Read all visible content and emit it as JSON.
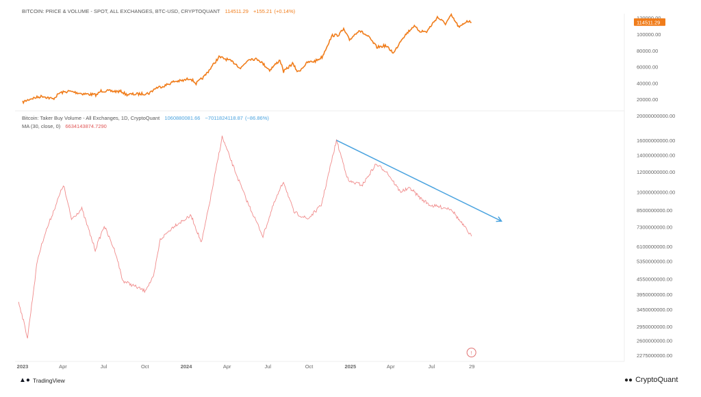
{
  "chart_data": [
    {
      "type": "line",
      "title": "BITCOIN: PRICE & VOLUME - SPOT, ALL EXCHANGES, BTC-USD, CRYPTOQUANT",
      "legend_values": {
        "last": "114511.29",
        "change": "+155.21",
        "change_pct": "(+0.14%)"
      },
      "price_badge": "114511.29",
      "color": "#f07c1a",
      "ylim": [
        0,
        130000
      ],
      "yticks": [
        "120000.00",
        "100000.00",
        "80000.00",
        "60000.00",
        "40000.00",
        "20000.00"
      ],
      "ytick_values": [
        120000,
        100000,
        80000,
        60000,
        40000,
        20000
      ],
      "series": [
        {
          "name": "BTC price (USD)",
          "points": [
            [
              "2023-01-01",
              16500
            ],
            [
              "2023-01-20",
              21000
            ],
            [
              "2023-02-15",
              24000
            ],
            [
              "2023-03-10",
              20500
            ],
            [
              "2023-03-25",
              28000
            ],
            [
              "2023-04-15",
              30000
            ],
            [
              "2023-05-15",
              27000
            ],
            [
              "2023-06-15",
              25500
            ],
            [
              "2023-06-25",
              30500
            ],
            [
              "2023-07-15",
              30200
            ],
            [
              "2023-08-10",
              29500
            ],
            [
              "2023-08-20",
              26000
            ],
            [
              "2023-09-15",
              26500
            ],
            [
              "2023-10-10",
              27500
            ],
            [
              "2023-10-25",
              34000
            ],
            [
              "2023-11-15",
              37000
            ],
            [
              "2023-12-05",
              42000
            ],
            [
              "2023-12-25",
              43000
            ],
            [
              "2024-01-10",
              46000
            ],
            [
              "2024-01-23",
              39500
            ],
            [
              "2024-02-10",
              48000
            ],
            [
              "2024-02-28",
              61000
            ],
            [
              "2024-03-14",
              72000
            ],
            [
              "2024-04-01",
              69000
            ],
            [
              "2024-04-20",
              64000
            ],
            [
              "2024-05-01",
              58000
            ],
            [
              "2024-05-20",
              70000
            ],
            [
              "2024-06-10",
              69000
            ],
            [
              "2024-07-05",
              56000
            ],
            [
              "2024-07-28",
              68500
            ],
            [
              "2024-08-05",
              54000
            ],
            [
              "2024-08-25",
              64000
            ],
            [
              "2024-09-06",
              53500
            ],
            [
              "2024-09-28",
              65500
            ],
            [
              "2024-10-15",
              67000
            ],
            [
              "2024-10-30",
              72000
            ],
            [
              "2024-11-12",
              88000
            ],
            [
              "2024-11-22",
              98500
            ],
            [
              "2024-12-05",
              99000
            ],
            [
              "2024-12-17",
              106000
            ],
            [
              "2024-12-30",
              93000
            ],
            [
              "2025-01-20",
              105000
            ],
            [
              "2025-02-10",
              97000
            ],
            [
              "2025-03-01",
              84000
            ],
            [
              "2025-03-20",
              86000
            ],
            [
              "2025-04-08",
              77000
            ],
            [
              "2025-04-25",
              94000
            ],
            [
              "2025-05-22",
              110000
            ],
            [
              "2025-06-05",
              104000
            ],
            [
              "2025-06-20",
              103000
            ],
            [
              "2025-07-14",
              121000
            ],
            [
              "2025-08-01",
              113000
            ],
            [
              "2025-08-14",
              123000
            ],
            [
              "2025-09-01",
              108000
            ],
            [
              "2025-09-18",
              116500
            ],
            [
              "2025-09-28",
              114511
            ]
          ]
        }
      ]
    },
    {
      "type": "line",
      "title": "Bitcoin: Taker Buy Volume - All Exchanges, 1D, CryptoQuant",
      "legend_values": {
        "last": "1060880081.66",
        "change": "−7011824118.87",
        "change_pct": "(−86.86%)"
      },
      "ma_label": "MA (30, close, 0)",
      "ma_value": "6634143874.7290",
      "color": "#f08a8a",
      "scale": "log",
      "ylim": [
        2100000000,
        21000000000
      ],
      "yticks": [
        "20000000000.00",
        "16000000000.00",
        "14000000000.00",
        "12000000000.00",
        "10000000000.00",
        "8500000000.00",
        "7300000000.00",
        "6100000000.00",
        "5350000000.00",
        "4550000000.00",
        "3950000000.00",
        "3450000000.00",
        "2950000000.00",
        "2600000000.00",
        "2275000000.00"
      ],
      "ytick_values": [
        20000000000.0,
        16000000000.0,
        14000000000.0,
        12000000000.0,
        10000000000.0,
        8500000000.0,
        7300000000.0,
        6100000000.0,
        5350000000.0,
        4550000000.0,
        3950000000.0,
        3450000000.0,
        2950000000.0,
        2600000000.0,
        2275000000.0
      ],
      "series": [
        {
          "name": "MA 30 Taker Buy Volume",
          "points": [
            [
              "2022-12-23",
              3720000000.0
            ],
            [
              "2023-01-12",
              2670000000.0
            ],
            [
              "2023-02-03",
              5390000000.0
            ],
            [
              "2023-02-18",
              6700000000.0
            ],
            [
              "2023-04-02",
              10680000000.0
            ],
            [
              "2023-04-20",
              7830000000.0
            ],
            [
              "2023-05-13",
              8590000000.0
            ],
            [
              "2023-06-12",
              5920000000.0
            ],
            [
              "2023-07-02",
              7360000000.0
            ],
            [
              "2023-07-28",
              5740000000.0
            ],
            [
              "2023-08-12",
              4480000000.0
            ],
            [
              "2023-09-30",
              4080000000.0
            ],
            [
              "2023-10-20",
              4620000000.0
            ],
            [
              "2023-11-04",
              6500000000.0
            ],
            [
              "2023-12-05",
              7360000000.0
            ],
            [
              "2024-01-12",
              8070000000.0
            ],
            [
              "2024-02-04",
              6300000000.0
            ],
            [
              "2024-02-27",
              10040000000.0
            ],
            [
              "2024-03-21",
              16500000000.0
            ],
            [
              "2024-04-13",
              12870000000.0
            ],
            [
              "2024-05-13",
              9430000000.0
            ],
            [
              "2024-06-20",
              6700000000.0
            ],
            [
              "2024-07-13",
              8860000000.0
            ],
            [
              "2024-08-05",
              11020000000.0
            ],
            [
              "2024-08-28",
              8330000000.0
            ],
            [
              "2024-09-28",
              7830000000.0
            ],
            [
              "2024-10-28",
              8860000000.0
            ],
            [
              "2024-12-01",
              15990000000.0
            ],
            [
              "2024-12-28",
              11020000000.0
            ],
            [
              "2025-01-28",
              10680000000.0
            ],
            [
              "2025-02-27",
              12870000000.0
            ],
            [
              "2025-03-22",
              12090000000.0
            ],
            [
              "2025-04-22",
              10040000000.0
            ],
            [
              "2025-05-15",
              10350000000.0
            ],
            [
              "2025-06-07",
              9430000000.0
            ],
            [
              "2025-06-29",
              8860000000.0
            ],
            [
              "2025-08-14",
              8590000000.0
            ],
            [
              "2025-08-30",
              7830000000.0
            ],
            [
              "2025-09-28",
              6700000000.0
            ]
          ]
        }
      ],
      "annotations": [
        {
          "type": "arrow",
          "color": "#4aa3df",
          "from": [
            "2024-12-01",
            16000000000.0
          ],
          "to": [
            "2025-12-04",
            7680000000.0
          ]
        }
      ]
    }
  ],
  "xaxis": {
    "ticks": [
      [
        "2023-01-01",
        "2023"
      ],
      [
        "2023-04-01",
        "Apr"
      ],
      [
        "2023-07-01",
        "Jul"
      ],
      [
        "2023-10-01",
        "Oct"
      ],
      [
        "2024-01-01",
        "2024"
      ],
      [
        "2024-04-01",
        "Apr"
      ],
      [
        "2024-07-01",
        "Jul"
      ],
      [
        "2024-10-01",
        "Oct"
      ],
      [
        "2025-01-01",
        "2025"
      ],
      [
        "2025-04-01",
        "Apr"
      ],
      [
        "2025-07-01",
        "Jul"
      ],
      [
        "2025-09-29",
        "29"
      ]
    ]
  },
  "marker": {
    "label": "!"
  },
  "branding": {
    "left": "TradingView",
    "right": "CryptoQuant"
  }
}
